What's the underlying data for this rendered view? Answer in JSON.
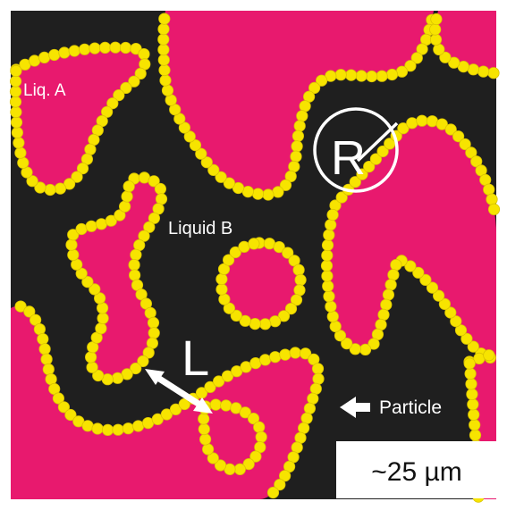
{
  "labels": {
    "liquid_a": "Liq. A",
    "liquid_b": "Liquid B",
    "radius": "R",
    "length": "L",
    "particle": "Particle",
    "scale_bar": "~25 µm"
  },
  "colors": {
    "frame": "#ffffff",
    "liquid_b": "#1f1f1f",
    "liquid_a": "#e8196e",
    "particle": "#f7e400",
    "particle_edge": "#d9c300",
    "annotation": "#ffffff",
    "scale_bar_bg": "#ffffff",
    "scale_bar_text": "#111111"
  },
  "icons": {
    "length_arrow": "double-headed-arrow-icon",
    "particle_pointer": "left-arrow-icon",
    "radius_marker": "circle-with-radius-icon"
  }
}
